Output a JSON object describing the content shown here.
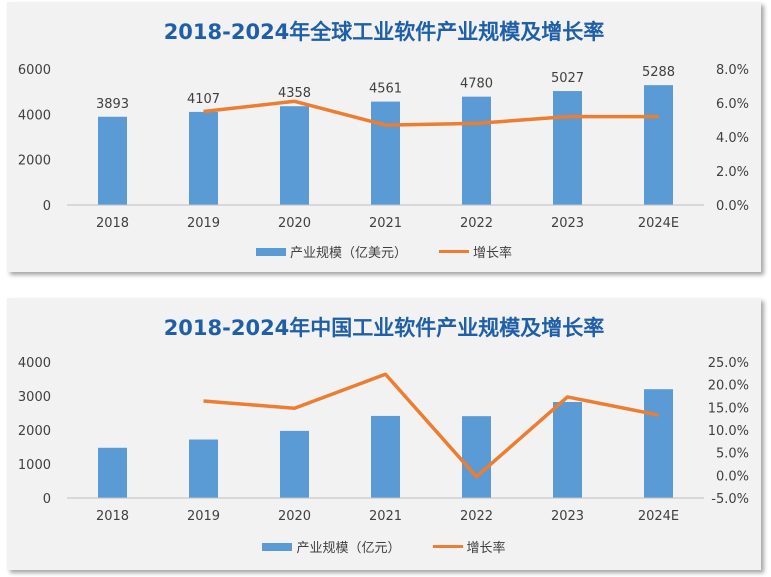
{
  "chart_data": [
    {
      "type": "bar",
      "title": "2018-2024年全球工业软件产业规模及增长率",
      "categories": [
        "2018",
        "2019",
        "2020",
        "2021",
        "2022",
        "2023",
        "2024E"
      ],
      "series": [
        {
          "name": "产业规模（亿美元）",
          "type": "bar",
          "axis": "left",
          "values": [
            3893,
            4107,
            4358,
            4561,
            4780,
            5027,
            5288
          ]
        },
        {
          "name": "增长率",
          "type": "line",
          "axis": "right",
          "values": [
            null,
            5.5,
            6.1,
            4.7,
            4.8,
            5.2,
            5.2
          ]
        }
      ],
      "data_labels": [
        "3893",
        "4107",
        "4358",
        "4561",
        "4780",
        "5027",
        "5288"
      ],
      "ylim_left": [
        0,
        6000
      ],
      "yticks_left": [
        "0",
        "2000",
        "4000",
        "6000"
      ],
      "ylim_right": [
        0,
        8
      ],
      "yticks_right": [
        "0.0%",
        "2.0%",
        "4.0%",
        "6.0%",
        "8.0%"
      ],
      "legend_position": "bottom",
      "grid": false,
      "colors": {
        "bar": "#5b9bd5",
        "line": "#ed7d31",
        "title": "#1f5fa8"
      }
    },
    {
      "type": "bar",
      "title": "2018-2024年中国工业软件产业规模及增长率",
      "categories": [
        "2018",
        "2019",
        "2020",
        "2021",
        "2022",
        "2023",
        "2024E"
      ],
      "series": [
        {
          "name": "产业规模（亿元）",
          "type": "bar",
          "axis": "left",
          "values": [
            1477,
            1720,
            1974,
            2414,
            2407,
            2824,
            3200
          ]
        },
        {
          "name": "增长率",
          "type": "line",
          "axis": "right",
          "values": [
            null,
            16.4,
            14.8,
            22.3,
            -0.3,
            17.3,
            13.3
          ]
        }
      ],
      "ylim_left": [
        0,
        4000
      ],
      "yticks_left": [
        "0",
        "1000",
        "2000",
        "3000",
        "4000"
      ],
      "ylim_right": [
        -5,
        25
      ],
      "yticks_right": [
        "-5.0%",
        "0.0%",
        "5.0%",
        "10.0%",
        "15.0%",
        "20.0%",
        "25.0%"
      ],
      "legend_position": "bottom",
      "grid": false,
      "colors": {
        "bar": "#5b9bd5",
        "line": "#ed7d31",
        "title": "#1f5fa8"
      }
    }
  ]
}
